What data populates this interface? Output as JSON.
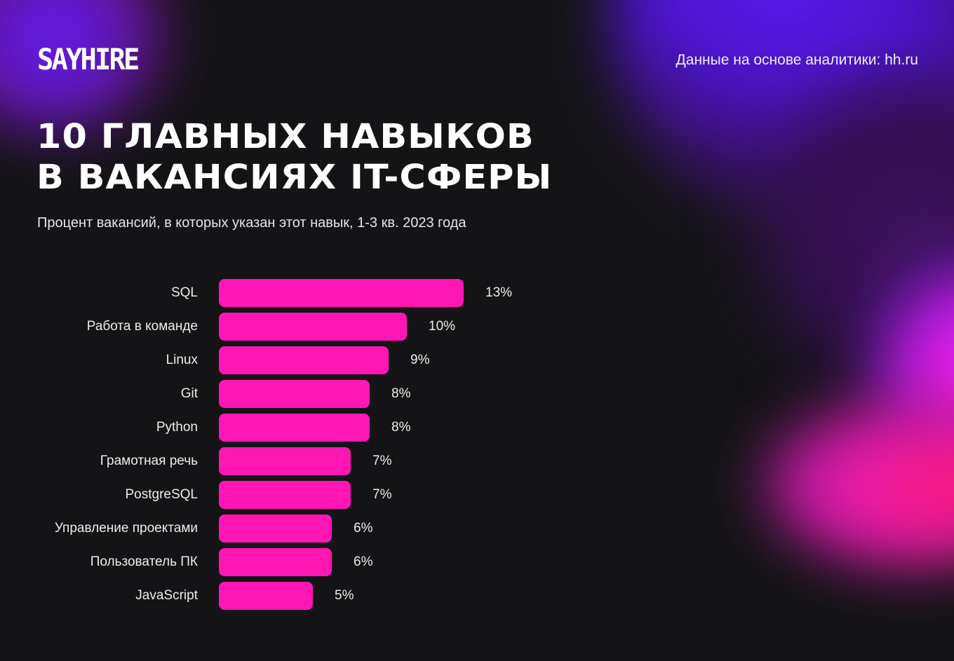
{
  "brand": {
    "logo_text": "SAYHIRE"
  },
  "header": {
    "source": "Данные на основе аналитики: hh.ru"
  },
  "title": {
    "line1": "10 главных навыков",
    "line2": "в вакансиях IT-сферы"
  },
  "subtitle": "Процент вакансий, в которых указан этот навык, 1-3 кв. 2023 года",
  "colors": {
    "background": "#141416",
    "bar": "#ff16b4",
    "text": "#ffffff",
    "accent_purple": "#5a1cf2",
    "accent_pink": "#f41862"
  },
  "chart_data": {
    "type": "bar",
    "orientation": "horizontal",
    "title": "10 главных навыков в вакансиях IT-сферы",
    "subtitle": "Процент вакансий, в которых указан этот навык, 1-3 кв. 2023 года",
    "xlabel": "",
    "ylabel": "",
    "unit": "%",
    "grid": false,
    "legend": null,
    "categories": [
      "SQL",
      "Работа в команде",
      "Linux",
      "Git",
      "Python",
      "Грамотная речь",
      "PostgreSQL",
      "Управление проектами",
      "Пользователь ПК",
      "JavaScript"
    ],
    "values": [
      13,
      10,
      9,
      8,
      8,
      7,
      7,
      6,
      6,
      5
    ],
    "value_labels": [
      "13%",
      "10%",
      "9%",
      "8%",
      "8%",
      "7%",
      "7%",
      "6%",
      "6%",
      "5%"
    ],
    "source": "hh.ru"
  }
}
